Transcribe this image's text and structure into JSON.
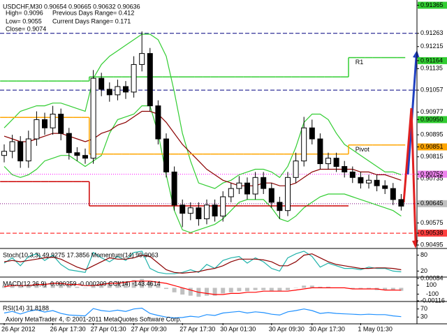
{
  "chart_data": [
    {
      "type": "candlestick",
      "title": "USDCHF,M30 0.90654 0.90665 0.90632 0.90636",
      "annotations": [
        "High= 0.9096",
        "Low= 0.9055",
        "Close= 0.9074",
        "Previous Days Range= 0.412",
        "Current Days Range= 0.171"
      ],
      "categories": [
        "26 Apr 2012",
        null,
        null,
        null,
        null,
        null,
        "26 Apr 17:30",
        null,
        null,
        null,
        null,
        "27 Apr 01:30",
        null,
        null,
        null,
        null,
        "27 Apr 09:30",
        null,
        null,
        null,
        null,
        null,
        "27 Apr 17:30",
        null,
        null,
        null,
        null,
        "30 Apr 01:30",
        null,
        null,
        null,
        null,
        null,
        "30 Apr 09:30",
        null,
        null,
        null,
        null,
        "30 Apr 17:30",
        null,
        null,
        null,
        null,
        null,
        "1 May 01:30",
        null,
        null,
        null,
        null,
        null
      ],
      "open": [
        0.9082,
        0.90835,
        0.9087,
        0.908,
        0.9088,
        0.9095,
        0.9092,
        0.9097,
        0.909,
        0.9083,
        0.9082,
        0.9081,
        0.911,
        0.9106,
        0.9104,
        0.9107,
        0.9105,
        0.9115,
        0.9119,
        0.91,
        0.9088,
        0.9076,
        0.9064,
        0.9061,
        0.9063,
        0.9059,
        0.9064,
        0.906,
        0.9067,
        0.907,
        0.9072,
        0.9068,
        0.9074,
        0.907,
        0.9065,
        0.9062,
        0.9074,
        0.908,
        0.9092,
        0.9088,
        0.9079,
        0.9081,
        0.9078,
        0.9076,
        0.9074,
        0.9072,
        0.9073,
        0.9071,
        0.907,
        0.9066
      ],
      "high": [
        0.9086,
        0.90895,
        0.9089,
        0.9091,
        0.9098,
        0.90975,
        0.91,
        0.9099,
        0.9092,
        0.9085,
        0.90845,
        0.9113,
        0.9112,
        0.91085,
        0.91095,
        0.9109,
        0.9118,
        0.9127,
        0.9121,
        0.9102,
        0.909,
        0.9078,
        0.9066,
        0.9065,
        0.9065,
        0.9066,
        0.9066,
        0.9069,
        0.9072,
        0.90745,
        0.9074,
        0.9076,
        0.9076,
        0.9072,
        0.9067,
        0.9076,
        0.9083,
        0.9096,
        0.9095,
        0.909,
        0.9083,
        0.9083,
        0.908,
        0.9078,
        0.9076,
        0.9075,
        0.9075,
        0.9073,
        0.9072,
        0.9068
      ],
      "low": [
        0.90795,
        0.9081,
        0.90775,
        0.90775,
        0.90855,
        0.90895,
        0.90895,
        0.90875,
        0.90805,
        0.908,
        0.9079,
        0.9079,
        0.91035,
        0.91015,
        0.9102,
        0.91025,
        0.9103,
        0.91125,
        0.9098,
        0.9086,
        0.9074,
        0.9062,
        0.9056,
        0.90585,
        0.90565,
        0.9057,
        0.9058,
        0.9058,
        0.9065,
        0.9068,
        0.9066,
        0.9066,
        0.9068,
        0.9063,
        0.9059,
        0.906,
        0.9072,
        0.9078,
        0.9086,
        0.9077,
        0.9077,
        0.9076,
        0.9074,
        0.9072,
        0.907,
        0.907,
        0.9069,
        0.9068,
        0.9064,
        0.9062
      ],
      "close": [
        0.90835,
        0.9087,
        0.908,
        0.9088,
        0.9095,
        0.9092,
        0.9097,
        0.909,
        0.9083,
        0.9082,
        0.9081,
        0.911,
        0.9106,
        0.9104,
        0.9107,
        0.9105,
        0.9115,
        0.9119,
        0.91,
        0.9088,
        0.9076,
        0.9064,
        0.9061,
        0.9063,
        0.9059,
        0.9064,
        0.906,
        0.9067,
        0.907,
        0.9072,
        0.9068,
        0.9074,
        0.907,
        0.9065,
        0.9062,
        0.9074,
        0.908,
        0.9092,
        0.9088,
        0.9079,
        0.9081,
        0.9078,
        0.9076,
        0.9074,
        0.9072,
        0.9073,
        0.9071,
        0.907,
        0.9066,
        0.90636
      ],
      "series": [
        {
          "color": "#32cd32",
          "values": [
            0.9092,
            0.9095,
            0.9098,
            0.9099,
            0.91,
            0.91,
            0.9101,
            0.9101,
            0.91,
            0.9099,
            0.9098,
            0.911,
            0.9115,
            0.9118,
            0.912,
            0.9122,
            0.9124,
            0.9126,
            0.9126,
            0.9124,
            0.9118,
            0.9105,
            0.909,
            0.908,
            0.9072,
            0.9071,
            0.907,
            0.9072,
            0.9073,
            0.9075,
            0.9076,
            0.9077,
            0.9077,
            0.9076,
            0.9074,
            0.9078,
            0.9085,
            0.9094,
            0.9097,
            0.9097,
            0.9095,
            0.909,
            0.9086,
            0.9084,
            0.9082,
            0.908,
            0.9078,
            0.9076,
            0.9076,
            0.9075
          ]
        },
        {
          "color": "#32cd32",
          "values": [
            0.9078,
            0.9075,
            0.9074,
            0.9075,
            0.9077,
            0.908,
            0.9081,
            0.9082,
            0.9082,
            0.908,
            0.9078,
            0.908,
            0.9082,
            0.909,
            0.9095,
            0.9096,
            0.9097,
            0.91,
            0.91,
            0.909,
            0.9075,
            0.9062,
            0.9055,
            0.9054,
            0.9055,
            0.9056,
            0.9057,
            0.9059,
            0.9062,
            0.9065,
            0.9066,
            0.9066,
            0.9066,
            0.9063,
            0.9059,
            0.9058,
            0.906,
            0.9063,
            0.9065,
            0.9067,
            0.9068,
            0.9068,
            0.9068,
            0.9067,
            0.9066,
            0.9065,
            0.9064,
            0.9063,
            0.9062,
            0.906
          ]
        },
        {
          "color": "#8b0000",
          "values": [
            0.9089,
            0.9088,
            0.9087,
            0.9087,
            0.9088,
            0.9089,
            0.909,
            0.909,
            0.9089,
            0.9088,
            0.9087,
            0.9088,
            0.909,
            0.9091,
            0.9093,
            0.9094,
            0.9096,
            0.9098,
            0.9098,
            0.9097,
            0.9094,
            0.909,
            0.9086,
            0.9083,
            0.908,
            0.9077,
            0.9075,
            0.9073,
            0.9072,
            0.9071,
            0.9071,
            0.9071,
            0.9072,
            0.9072,
            0.9071,
            0.9071,
            0.9072,
            0.9074,
            0.9076,
            0.9077,
            0.9077,
            0.9077,
            0.9077,
            0.9077,
            0.9076,
            0.9076,
            0.9075,
            0.9075,
            0.9074,
            0.9073
          ]
        },
        {
          "name": "R1",
          "color": "#32cd32",
          "step": true,
          "values": [
            0.9109,
            0.9109,
            0.9109,
            0.9109,
            0.9109,
            0.9109,
            0.9109,
            0.9109,
            0.9109,
            0.9109,
            0.9109,
            0.91105,
            0.91105,
            0.91105,
            0.91105,
            0.91105,
            0.91105,
            0.91105,
            0.91105,
            0.91105,
            0.91105,
            0.91105,
            0.91105,
            0.91105,
            0.91105,
            0.91105,
            0.91105,
            0.91105,
            0.91105,
            0.91105,
            0.91105,
            0.91105,
            0.91105,
            0.91105,
            0.91105,
            0.91105,
            0.91105,
            0.91105,
            0.91105,
            0.91105,
            0.91105,
            0.91105,
            0.91105,
            0.91175,
            0.91175,
            0.91175,
            0.91175,
            0.91175,
            0.91175,
            0.91175
          ]
        },
        {
          "name": "Pivot",
          "color": "#ffa500",
          "step": true,
          "values": [
            0.90958,
            0.90958,
            0.90958,
            0.90958,
            0.90958,
            0.90958,
            0.90958,
            0.90958,
            0.90958,
            0.90958,
            0.90958,
            0.90825,
            0.90825,
            0.90825,
            0.90825,
            0.90825,
            0.90825,
            0.90825,
            0.90825,
            0.90825,
            0.90825,
            0.90825,
            0.90825,
            0.90825,
            0.90825,
            0.90825,
            0.90825,
            0.90825,
            0.90825,
            0.90825,
            0.90825,
            0.90825,
            0.90825,
            0.90825,
            0.90825,
            0.90825,
            0.90825,
            0.90825,
            0.90825,
            0.90825,
            0.90825,
            0.90825,
            0.90825,
            0.90858,
            0.90858,
            0.90858,
            0.90858,
            0.90858,
            0.90858,
            0.90858
          ]
        },
        {
          "color": "#cc0000",
          "step": true,
          "values": [
            0.90725,
            0.90725,
            0.90725,
            0.90725,
            0.90725,
            0.90725,
            0.90725,
            0.90725,
            0.90725,
            0.90725,
            0.90725,
            0.90637,
            0.90637,
            0.90637,
            0.90637,
            0.90637,
            0.90637,
            0.90637,
            0.90637,
            0.90637,
            0.90637,
            0.90637,
            0.90637,
            0.90637,
            0.90637,
            0.90637,
            0.90637,
            0.90637,
            0.90637,
            0.90637,
            0.90637,
            0.90637,
            0.90637,
            0.90637,
            0.90637,
            0.90637,
            0.90637,
            0.90637,
            0.90637,
            0.90637,
            0.90637,
            0.90637,
            0.90637,
            null,
            null,
            null,
            null,
            null,
            null,
            null
          ]
        }
      ],
      "levels": [
        {
          "value": 0.91263,
          "color": "#000080",
          "style": "dashed"
        },
        {
          "value": 0.91057,
          "color": "#000080",
          "style": "dashed"
        },
        {
          "value": 0.90752,
          "color": "#ff00ff",
          "style": "dotted"
        },
        {
          "value": 0.90645,
          "color": "#800080",
          "style": "dotted"
        },
        {
          "value": 0.90538,
          "color": "#ff0000",
          "style": "dashed"
        }
      ],
      "ylim": [
        0.90485,
        0.91379
      ],
      "yticks": [
        0.91365,
        0.91263,
        0.91215,
        0.91164,
        0.91135,
        0.91057,
        0.90977,
        {
          "value": 0.9095,
          "label": "0.90950"
        },
        0.90895,
        0.90851,
        0.90815,
        0.90752,
        0.90735,
        0.90645,
        0.90575,
        0.90538,
        0.90495
      ],
      "ytick_colors": [
        "#32cd32",
        null,
        null,
        "#32cd32",
        null,
        null,
        null,
        "#32cd32",
        null,
        "#ffa500",
        null,
        "#ee82ee",
        null,
        "#c0c0c0",
        null,
        "#ff4040",
        null
      ]
    },
    {
      "type": "line",
      "title": "Stoch(10,3,3) 49.9275 17.3856 Momentum(14) 99.9063",
      "series": [
        {
          "color": "#20b2aa",
          "values": [
            50,
            70,
            40,
            75,
            85,
            60,
            80,
            45,
            25,
            20,
            15,
            90,
            70,
            55,
            75,
            60,
            90,
            95,
            30,
            15,
            10,
            10,
            15,
            25,
            15,
            45,
            30,
            60,
            70,
            75,
            50,
            70,
            55,
            30,
            20,
            70,
            85,
            95,
            75,
            35,
            50,
            40,
            30,
            30,
            25,
            35,
            30,
            30,
            20,
            17
          ]
        },
        {
          "color": "#8b0000",
          "values": [
            55,
            60,
            55,
            60,
            65,
            70,
            72,
            65,
            50,
            35,
            25,
            40,
            55,
            70,
            65,
            65,
            70,
            80,
            75,
            50,
            25,
            15,
            12,
            15,
            18,
            25,
            30,
            40,
            55,
            65,
            65,
            65,
            62,
            55,
            40,
            40,
            55,
            80,
            85,
            70,
            55,
            45,
            40,
            35,
            30,
            30,
            32,
            32,
            30,
            25
          ]
        }
      ],
      "ylim": [
        0,
        100
      ],
      "yticks": [
        80,
        20
      ]
    },
    {
      "type": "macd",
      "title": "MACD(12,26,9) -0.000259 -0.000209 CCI(14) -143.4614",
      "values": [
        0.0002,
        0.0003,
        0.0002,
        0.0003,
        0.0004,
        0.0004,
        0.0005,
        0.0004,
        0.0002,
        0.0001,
        0,
        0.0003,
        0.0004,
        0.0005,
        0.0006,
        0.0006,
        0.0007,
        0.0008,
        0.0006,
        0.0003,
        -0.0001,
        -0.0004,
        -0.0006,
        -0.0007,
        -0.0008,
        -0.0007,
        -0.0007,
        -0.0005,
        -0.0004,
        -0.0003,
        -0.0003,
        -0.0002,
        -0.0002,
        -0.0003,
        -0.0003,
        -0.0002,
        0,
        0.0002,
        0.0002,
        0.0001,
        0.0001,
        0,
        0,
        -0.0001,
        -0.0001,
        -0.0001,
        -0.0002,
        -0.0002,
        -0.0002,
        -0.00026
      ],
      "color": "#c0c0c0",
      "series": [
        {
          "color": "#ff0000",
          "values": [
            0.0001,
            0.0002,
            0.0002,
            0.0002,
            0.0003,
            0.0003,
            0.0004,
            0.0004,
            0.0003,
            0.0003,
            0.0002,
            0.0002,
            0.0003,
            0.0004,
            0.0004,
            0.0005,
            0.0006,
            0.0006,
            0.0006,
            0.0005,
            0.0004,
            0.0002,
            0,
            -0.0002,
            -0.0004,
            -0.0005,
            -0.0006,
            -0.0006,
            -0.0005,
            -0.0005,
            -0.0004,
            -0.0004,
            -0.0003,
            -0.0003,
            -0.0003,
            -0.0003,
            -0.0002,
            -0.0001,
            0,
            0,
            0,
            0,
            0,
            -0.0001,
            -0.0001,
            -0.0001,
            -0.0001,
            -0.0002,
            -0.0002,
            -0.00021
          ]
        }
      ],
      "ylim": [
        -0.00116,
        0.00084
      ],
      "yticks": [
        0.00084,
        -0.00116
      ],
      "y2lim": [
        -250,
        250
      ],
      "y2ticks": [
        100,
        -100
      ]
    },
    {
      "type": "line",
      "title": "RSI(14) 31.8188",
      "annotations": [
        "Axiory MetaTrader 4, © 2001-2011 MetaQuotes Software Corp."
      ],
      "series": [
        {
          "color": "#1e90ff",
          "values": [
            50,
            58,
            45,
            58,
            66,
            55,
            62,
            48,
            40,
            38,
            36,
            72,
            62,
            58,
            64,
            58,
            70,
            74,
            48,
            38,
            30,
            26,
            28,
            34,
            30,
            42,
            38,
            50,
            54,
            58,
            50,
            56,
            52,
            44,
            40,
            56,
            62,
            70,
            62,
            48,
            52,
            48,
            46,
            44,
            42,
            44,
            42,
            42,
            36,
            32
          ]
        }
      ],
      "ylim": [
        0,
        100
      ],
      "yticks": [
        70,
        30
      ]
    }
  ]
}
